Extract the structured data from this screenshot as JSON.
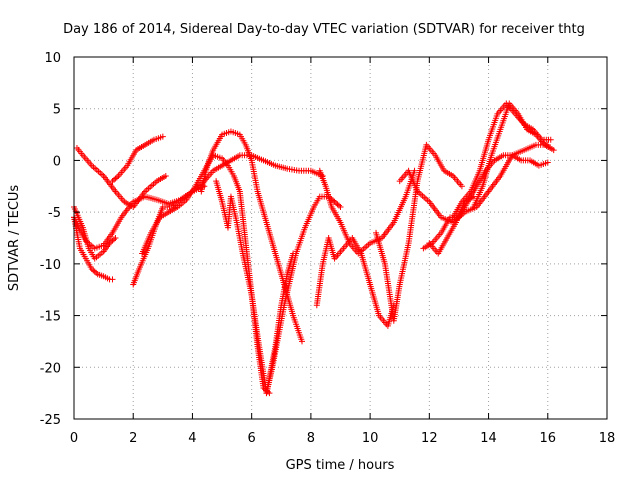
{
  "chart_data": {
    "type": "scatter",
    "title": "Day 186 of 2014, Sidereal Day-to-day VTEC variation (SDTVAR) for receiver thtg",
    "xlabel": "GPS time / hours",
    "ylabel": "SDTVAR / TECUs",
    "xlim": [
      0,
      18
    ],
    "ylim": [
      -25,
      10
    ],
    "xticks": [
      0,
      2,
      4,
      6,
      8,
      10,
      12,
      14,
      16,
      18
    ],
    "yticks": [
      -25,
      -20,
      -15,
      -10,
      -5,
      0,
      5,
      10
    ],
    "grid": true,
    "marker": "+",
    "color": "#ff0000",
    "series": [
      {
        "x": [
          0.0,
          0.3,
          0.5,
          0.7,
          1.0,
          1.2,
          1.4
        ],
        "y": [
          -4.5,
          -6.5,
          -8.5,
          -9.5,
          -8.8,
          -8.0,
          -7.5
        ]
      },
      {
        "x": [
          0.0,
          0.2,
          0.4,
          0.7,
          1.0,
          1.3,
          1.6,
          2.0,
          2.4,
          2.8,
          3.2,
          3.6,
          4.0,
          4.4
        ],
        "y": [
          -5.5,
          -6.8,
          -7.8,
          -8.5,
          -8.2,
          -7.0,
          -5.5,
          -4.0,
          -3.5,
          -3.8,
          -4.2,
          -3.8,
          -3.0,
          -2.5
        ]
      },
      {
        "x": [
          0.0,
          0.1,
          0.2,
          0.4,
          0.6,
          0.8,
          1.0,
          1.2,
          1.3
        ],
        "y": [
          -5.5,
          -7.0,
          -8.5,
          -9.5,
          -10.5,
          -11.0,
          -11.2,
          -11.5,
          -11.5
        ]
      },
      {
        "x": [
          0.1,
          0.3,
          0.6,
          1.0,
          1.4,
          1.7,
          2.0,
          2.4,
          2.8,
          3.1
        ],
        "y": [
          1.2,
          0.5,
          -0.5,
          -1.5,
          -3.0,
          -4.0,
          -4.5,
          -3.0,
          -2.0,
          -1.5
        ]
      },
      {
        "x": [
          1.3,
          1.5,
          1.8,
          2.1,
          2.4,
          2.7,
          3.0
        ],
        "y": [
          -2.0,
          -1.5,
          -0.5,
          1.0,
          1.5,
          2.0,
          2.3
        ]
      },
      {
        "x": [
          2.0,
          2.2,
          2.5,
          2.8,
          3.0,
          3.3,
          3.6,
          4.0,
          4.4,
          4.7,
          5.0,
          5.3,
          5.6,
          6.0,
          6.4,
          6.8,
          7.2,
          7.6,
          8.0,
          8.4
        ],
        "y": [
          -12.0,
          -10.5,
          -8.5,
          -6.0,
          -4.5,
          -4.5,
          -3.8,
          -3.0,
          -2.0,
          -1.0,
          -0.5,
          0.0,
          0.5,
          0.5,
          0.0,
          -0.5,
          -0.8,
          -1.0,
          -1.0,
          -1.5
        ]
      },
      {
        "x": [
          4.3,
          4.5,
          4.7,
          5.0,
          5.3,
          5.6,
          5.8,
          6.0,
          6.2,
          6.5,
          6.8,
          7.1,
          7.4,
          7.7
        ],
        "y": [
          -3.0,
          -0.5,
          1.0,
          2.5,
          2.8,
          2.5,
          1.5,
          0.0,
          -3.0,
          -6.0,
          -9.0,
          -12.0,
          -15.0,
          -17.5
        ]
      },
      {
        "x": [
          2.3,
          2.6,
          2.9,
          3.2,
          3.5,
          3.8,
          4.1,
          4.4,
          4.7,
          5.0,
          5.2,
          5.4,
          5.6,
          5.8,
          6.0,
          6.2,
          6.4,
          6.6
        ],
        "y": [
          -9.0,
          -7.0,
          -5.5,
          -5.0,
          -4.5,
          -3.8,
          -2.5,
          -1.0,
          0.5,
          0.2,
          -0.5,
          -1.5,
          -3.0,
          -8.0,
          -13.0,
          -18.0,
          -22.0,
          -22.5
        ]
      },
      {
        "x": [
          4.8,
          5.0,
          5.2,
          5.3,
          5.5,
          5.7,
          6.0,
          6.2,
          6.5,
          6.8,
          7.0,
          7.2,
          7.4
        ],
        "y": [
          -2.0,
          -4.0,
          -6.5,
          -3.5,
          -6.0,
          -9.0,
          -13.0,
          -17.0,
          -22.5,
          -18.0,
          -14.0,
          -11.0,
          -9.0
        ]
      },
      {
        "x": [
          6.5,
          6.7,
          6.9,
          7.1,
          7.3,
          7.5,
          7.8,
          8.1,
          8.3,
          8.6,
          8.8,
          9.0
        ],
        "y": [
          -22.5,
          -20.0,
          -17.0,
          -14.0,
          -11.5,
          -9.0,
          -6.5,
          -4.5,
          -3.5,
          -3.5,
          -4.0,
          -4.5
        ]
      },
      {
        "x": [
          8.2,
          8.4,
          8.6,
          8.8,
          9.1,
          9.4,
          9.7,
          10.0,
          10.3,
          10.6,
          10.8
        ],
        "y": [
          -14.0,
          -10.0,
          -7.5,
          -9.5,
          -8.5,
          -7.5,
          -9.0,
          -12.0,
          -15.0,
          -16.0,
          -14.0
        ]
      },
      {
        "x": [
          8.3,
          8.5,
          8.7,
          9.0,
          9.3,
          9.6,
          10.0,
          10.4,
          10.8,
          11.2,
          11.5
        ],
        "y": [
          -1.0,
          -2.5,
          -4.5,
          -6.0,
          -8.0,
          -9.0,
          -8.0,
          -7.5,
          -6.0,
          -3.5,
          -1.0
        ]
      },
      {
        "x": [
          10.2,
          10.5,
          10.8,
          11.0,
          11.3,
          11.6,
          11.9,
          12.2,
          12.5,
          12.8,
          13.1
        ],
        "y": [
          -7.0,
          -10.0,
          -15.5,
          -12.0,
          -8.0,
          -2.0,
          1.5,
          0.5,
          -1.0,
          -1.5,
          -2.5
        ]
      },
      {
        "x": [
          11.0,
          11.3,
          11.6,
          12.0,
          12.4,
          12.8,
          13.2,
          13.6,
          14.0,
          14.4,
          14.8,
          15.2,
          15.6,
          16.0
        ],
        "y": [
          -2.0,
          -1.0,
          -3.0,
          -4.0,
          -5.5,
          -6.0,
          -5.0,
          -4.5,
          -3.0,
          -1.5,
          0.5,
          1.0,
          1.5,
          1.5
        ]
      },
      {
        "x": [
          11.8,
          12.1,
          12.4,
          12.7,
          13.0,
          13.3,
          13.6,
          13.9,
          14.2,
          14.5,
          14.8,
          15.1,
          15.4,
          15.7,
          16.0
        ],
        "y": [
          -8.5,
          -8.0,
          -7.0,
          -5.5,
          -5.5,
          -4.0,
          -2.5,
          -1.0,
          0.0,
          0.5,
          0.5,
          0.0,
          0.0,
          -0.5,
          -0.2
        ]
      },
      {
        "x": [
          12.8,
          13.1,
          13.4,
          13.7,
          14.0,
          14.3,
          14.6,
          14.9,
          15.2,
          15.5,
          15.8,
          16.1
        ],
        "y": [
          -5.5,
          -4.0,
          -3.0,
          -1.0,
          2.0,
          4.5,
          5.5,
          4.5,
          3.5,
          3.0,
          2.0,
          2.0
        ]
      },
      {
        "x": [
          13.5,
          13.8,
          14.1,
          14.4,
          14.7,
          15.0,
          15.3,
          15.6,
          15.9,
          16.2
        ],
        "y": [
          -4.5,
          -2.5,
          0.5,
          3.0,
          5.5,
          4.5,
          3.0,
          2.5,
          1.5,
          1.0
        ]
      },
      {
        "x": [
          12.0,
          12.3,
          12.6,
          12.9,
          13.2,
          13.5
        ],
        "y": [
          -8.0,
          -9.0,
          -7.5,
          -6.0,
          -4.0,
          -3.5
        ]
      }
    ]
  }
}
